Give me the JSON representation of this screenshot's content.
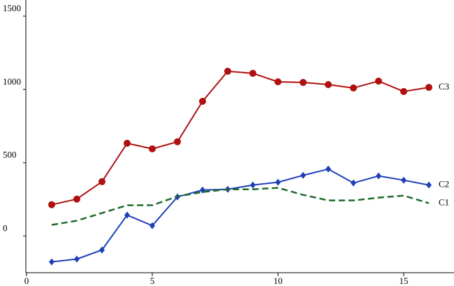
{
  "chart_data": {
    "type": "line",
    "x": [
      1,
      2,
      3,
      4,
      5,
      6,
      7,
      8,
      9,
      10,
      11,
      12,
      13,
      14,
      15,
      16
    ],
    "series": [
      {
        "name": "C3",
        "color": "#b01010",
        "marker": "circle",
        "line_style": "solid",
        "values": [
          214,
          252,
          371,
          633,
          595,
          643,
          919,
          1124,
          1110,
          1052,
          1048,
          1033,
          1010,
          1057,
          986,
          1014
        ]
      },
      {
        "name": "C2",
        "color": "#1f3fb8",
        "marker": "diamond",
        "line_style": "solid",
        "values": [
          -176,
          -157,
          -95,
          143,
          71,
          267,
          314,
          319,
          348,
          367,
          414,
          457,
          362,
          410,
          381,
          348
        ]
      },
      {
        "name": "C1",
        "color": "#1e6b2a",
        "marker": "none",
        "line_style": "dashed",
        "values": [
          76,
          105,
          157,
          210,
          210,
          271,
          300,
          319,
          319,
          329,
          281,
          243,
          243,
          262,
          276,
          224
        ]
      }
    ],
    "xlim": [
      0,
      17
    ],
    "xticks": [
      0,
      5,
      10,
      15
    ],
    "ylim": [
      -250,
      1610
    ],
    "yticks": [
      0,
      500,
      1000,
      1500
    ]
  }
}
